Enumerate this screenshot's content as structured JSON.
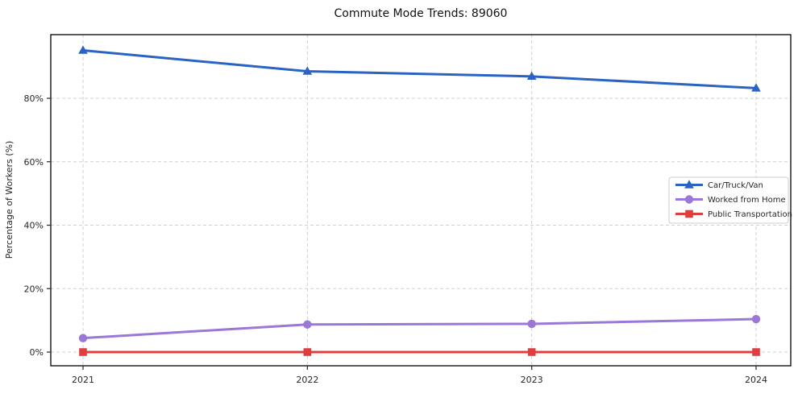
{
  "chart_data": {
    "type": "line",
    "title": "Commute Mode Trends: 89060",
    "xlabel": "",
    "ylabel": "Percentage of Workers (%)",
    "x": [
      "2021",
      "2022",
      "2023",
      "2024"
    ],
    "yticks": {
      "values": [
        0,
        20,
        40,
        60,
        80
      ],
      "labels": [
        "0%",
        "20%",
        "40%",
        "60%",
        "80%"
      ]
    },
    "ylim": [
      -4.3,
      100.1
    ],
    "grid": "dashed gray, horizontal and vertical",
    "legend_position": "center-right",
    "series": [
      {
        "name": "Car/Truck/Van",
        "marker": "triangle",
        "color": "#2a63c4",
        "values": [
          95.1,
          88.5,
          86.9,
          83.2
        ]
      },
      {
        "name": "Worked from Home",
        "marker": "circle",
        "color": "#9b78d8",
        "values": [
          4.4,
          8.7,
          8.9,
          10.4
        ]
      },
      {
        "name": "Public Transportation",
        "marker": "square",
        "color": "#e03e3e",
        "values": [
          0,
          0,
          0,
          0
        ]
      }
    ]
  }
}
